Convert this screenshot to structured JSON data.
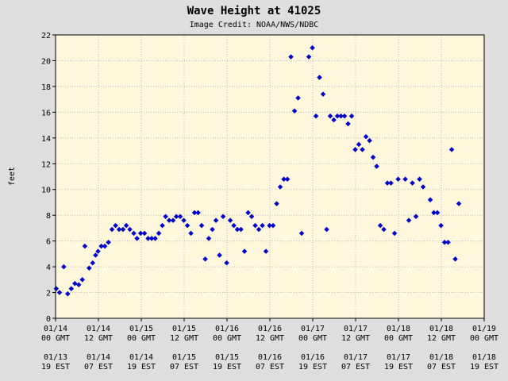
{
  "chart_data": {
    "type": "scatter",
    "title": "Wave Height at 41025",
    "subtitle": "Image Credit: NOAA/NWS/NDBC",
    "ylabel": "feet",
    "ylim": [
      0,
      22
    ],
    "yticks": [
      0,
      2,
      4,
      6,
      8,
      10,
      12,
      14,
      16,
      18,
      20,
      22
    ],
    "xlim": [
      0,
      120
    ],
    "x_unit": "hours from 01/14 00 GMT",
    "grid": true,
    "colors": {
      "background": "#fff8dc",
      "plot_frame": "#000000",
      "grid": "#bbbbbb",
      "marker": "#0000cc",
      "page": "#dedede"
    },
    "xtick_labels": [
      {
        "x": 0,
        "line1": "01/14",
        "line2": "00 GMT",
        "line3": "01/13",
        "line4": "19 EST"
      },
      {
        "x": 12,
        "line1": "01/14",
        "line2": "12 GMT",
        "line3": "01/14",
        "line4": "07 EST"
      },
      {
        "x": 24,
        "line1": "01/15",
        "line2": "00 GMT",
        "line3": "01/14",
        "line4": "19 EST"
      },
      {
        "x": 36,
        "line1": "01/15",
        "line2": "12 GMT",
        "line3": "01/15",
        "line4": "07 EST"
      },
      {
        "x": 48,
        "line1": "01/16",
        "line2": "00 GMT",
        "line3": "01/15",
        "line4": "19 EST"
      },
      {
        "x": 60,
        "line1": "01/16",
        "line2": "12 GMT",
        "line3": "01/16",
        "line4": "07 EST"
      },
      {
        "x": 72,
        "line1": "01/17",
        "line2": "00 GMT",
        "line3": "01/16",
        "line4": "19 EST"
      },
      {
        "x": 84,
        "line1": "01/17",
        "line2": "12 GMT",
        "line3": "01/17",
        "line4": "07 EST"
      },
      {
        "x": 96,
        "line1": "01/18",
        "line2": "00 GMT",
        "line3": "01/17",
        "line4": "19 EST"
      },
      {
        "x": 108,
        "line1": "01/18",
        "line2": "12 GMT",
        "line3": "01/18",
        "line4": "07 EST"
      },
      {
        "x": 120,
        "line1": "01/19",
        "line2": "00 GMT",
        "line3": "01/18",
        "line4": "19 EST"
      }
    ],
    "series": [
      {
        "marker": "diamond",
        "points": [
          [
            0.2,
            2.3
          ],
          [
            1.1,
            2.0
          ],
          [
            2.3,
            4.0
          ],
          [
            3.4,
            1.9
          ],
          [
            4.4,
            2.3
          ],
          [
            5.4,
            2.7
          ],
          [
            6.5,
            2.6
          ],
          [
            7.5,
            3.0
          ],
          [
            8.2,
            5.6
          ],
          [
            9.4,
            3.9
          ],
          [
            10.4,
            4.3
          ],
          [
            11.2,
            4.9
          ],
          [
            11.9,
            5.2
          ],
          [
            12.8,
            5.6
          ],
          [
            13.8,
            5.6
          ],
          [
            14.8,
            5.9
          ],
          [
            15.8,
            6.9
          ],
          [
            16.8,
            7.2
          ],
          [
            17.8,
            6.9
          ],
          [
            18.9,
            6.9
          ],
          [
            19.8,
            7.2
          ],
          [
            20.8,
            6.9
          ],
          [
            21.9,
            6.6
          ],
          [
            22.8,
            6.2
          ],
          [
            23.8,
            6.6
          ],
          [
            24.9,
            6.6
          ],
          [
            25.9,
            6.2
          ],
          [
            26.9,
            6.2
          ],
          [
            27.9,
            6.2
          ],
          [
            28.9,
            6.6
          ],
          [
            29.9,
            7.2
          ],
          [
            30.8,
            7.9
          ],
          [
            31.8,
            7.6
          ],
          [
            32.9,
            7.6
          ],
          [
            33.8,
            7.9
          ],
          [
            34.9,
            7.9
          ],
          [
            35.9,
            7.6
          ],
          [
            36.9,
            7.2
          ],
          [
            37.9,
            6.6
          ],
          [
            38.9,
            8.2
          ],
          [
            39.9,
            8.2
          ],
          [
            40.9,
            7.2
          ],
          [
            41.9,
            4.6
          ],
          [
            42.9,
            6.2
          ],
          [
            43.9,
            6.9
          ],
          [
            44.9,
            7.6
          ],
          [
            45.9,
            4.9
          ],
          [
            46.9,
            7.9
          ],
          [
            47.9,
            4.3
          ],
          [
            48.9,
            7.6
          ],
          [
            49.9,
            7.2
          ],
          [
            50.9,
            6.9
          ],
          [
            51.9,
            6.9
          ],
          [
            52.9,
            5.2
          ],
          [
            53.9,
            8.2
          ],
          [
            54.9,
            7.9
          ],
          [
            55.9,
            7.2
          ],
          [
            56.9,
            6.9
          ],
          [
            57.9,
            7.2
          ],
          [
            58.9,
            5.2
          ],
          [
            59.9,
            7.2
          ],
          [
            60.9,
            7.2
          ],
          [
            61.9,
            8.9
          ],
          [
            62.9,
            10.2
          ],
          [
            63.9,
            10.8
          ],
          [
            64.9,
            10.8
          ],
          [
            65.9,
            20.3
          ],
          [
            66.9,
            16.1
          ],
          [
            67.9,
            17.1
          ],
          [
            68.9,
            6.6
          ],
          [
            70.9,
            20.3
          ],
          [
            71.9,
            21.0
          ],
          [
            72.9,
            15.7
          ],
          [
            73.9,
            18.7
          ],
          [
            74.9,
            17.4
          ],
          [
            75.9,
            6.9
          ],
          [
            76.9,
            15.7
          ],
          [
            77.9,
            15.4
          ],
          [
            78.9,
            15.7
          ],
          [
            79.9,
            15.7
          ],
          [
            80.9,
            15.7
          ],
          [
            81.9,
            15.1
          ],
          [
            82.9,
            15.7
          ],
          [
            83.9,
            13.1
          ],
          [
            84.9,
            13.5
          ],
          [
            85.9,
            13.1
          ],
          [
            86.9,
            14.1
          ],
          [
            87.9,
            13.8
          ],
          [
            88.9,
            12.5
          ],
          [
            89.9,
            11.8
          ],
          [
            90.9,
            7.2
          ],
          [
            91.9,
            6.9
          ],
          [
            92.9,
            10.5
          ],
          [
            93.9,
            10.5
          ],
          [
            94.9,
            6.6
          ],
          [
            95.9,
            10.8
          ],
          [
            97.9,
            10.8
          ],
          [
            98.9,
            7.6
          ],
          [
            99.9,
            10.5
          ],
          [
            100.9,
            7.9
          ],
          [
            101.9,
            10.8
          ],
          [
            102.9,
            10.2
          ],
          [
            104.9,
            9.2
          ],
          [
            105.9,
            8.2
          ],
          [
            106.9,
            8.2
          ],
          [
            107.9,
            7.2
          ],
          [
            108.9,
            5.9
          ],
          [
            109.9,
            5.9
          ],
          [
            110.9,
            13.1
          ],
          [
            111.9,
            4.6
          ],
          [
            112.9,
            8.9
          ]
        ]
      }
    ]
  }
}
